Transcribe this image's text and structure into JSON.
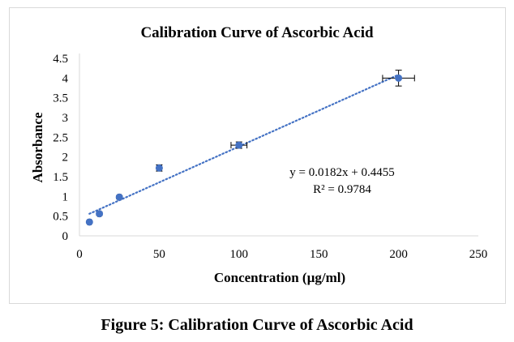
{
  "figure_caption": "Figure 5: Calibration Curve of Ascorbic Acid",
  "chart_data": {
    "type": "scatter",
    "title": "Calibration Curve of Ascorbic Acid",
    "xlabel": "Concentration (µg/ml)",
    "ylabel": "Absorbance",
    "xlim": [
      0,
      250
    ],
    "ylim": [
      0,
      4.5
    ],
    "xticks": [
      "0",
      "50",
      "100",
      "150",
      "200",
      "250"
    ],
    "yticks": [
      "0",
      "0.5",
      "1",
      "1.5",
      "2",
      "2.5",
      "3",
      "3.5",
      "4",
      "4.5"
    ],
    "grid": false,
    "series": [
      {
        "name": "Absorbance",
        "color": "#4472c4",
        "x": [
          6.25,
          12.5,
          25,
          50,
          100,
          200
        ],
        "y": [
          0.35,
          0.56,
          0.98,
          1.72,
          2.3,
          4.0
        ],
        "x_err": [
          1,
          1,
          1,
          1.5,
          5,
          10
        ],
        "y_err": [
          0.03,
          0.04,
          0.04,
          0.08,
          0.08,
          0.2
        ]
      }
    ],
    "trendline": {
      "type": "linear",
      "slope": 0.0182,
      "intercept": 0.4455,
      "x_range": [
        6.25,
        200
      ],
      "style": "dotted"
    },
    "annotations": [
      "y = 0.0182x + 0.4455",
      "R² = 0.9784"
    ]
  }
}
